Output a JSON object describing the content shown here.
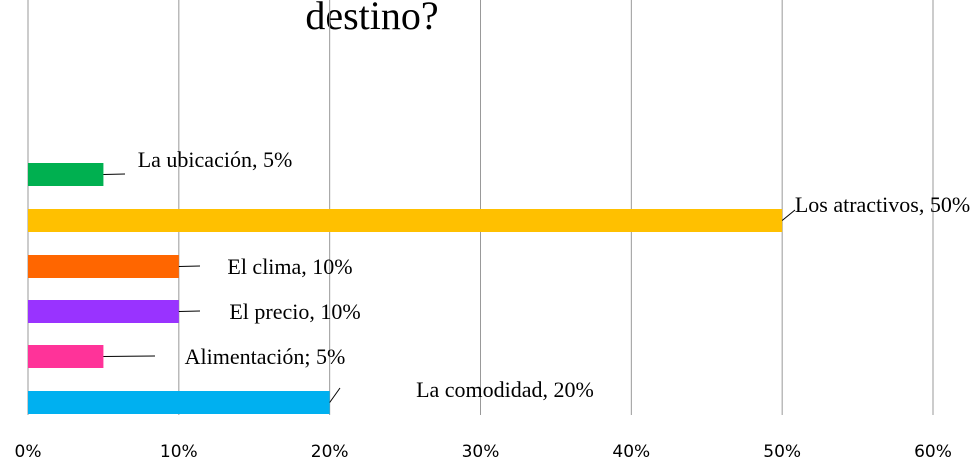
{
  "chart_data": {
    "type": "bar",
    "orientation": "horizontal",
    "title": "destino?",
    "categories": [
      "La comodidad",
      "Alimentación",
      "El precio",
      "El clima",
      "Los atractivos",
      "La ubicación"
    ],
    "values": [
      20,
      5,
      10,
      10,
      50,
      5
    ],
    "value_labels": [
      "La comodidad, 20%",
      "Alimentación; 5%",
      "El precio, 10%",
      "El clima, 10%",
      "Los atractivos, 50%",
      "La ubicación, 5%"
    ],
    "colors": [
      "#00b0f0",
      "#ff3399",
      "#9933ff",
      "#ff6600",
      "#ffc000",
      "#00b050"
    ],
    "xlim": [
      0,
      60
    ],
    "xticks": [
      {
        "value": 0,
        "label": "0%"
      },
      {
        "value": 10,
        "label": "10%"
      },
      {
        "value": 20,
        "label": "20%"
      },
      {
        "value": 30,
        "label": "30%"
      },
      {
        "value": 40,
        "label": "40%"
      },
      {
        "value": 50,
        "label": "50%"
      },
      {
        "value": 60,
        "label": "60%"
      }
    ],
    "grid": true
  }
}
